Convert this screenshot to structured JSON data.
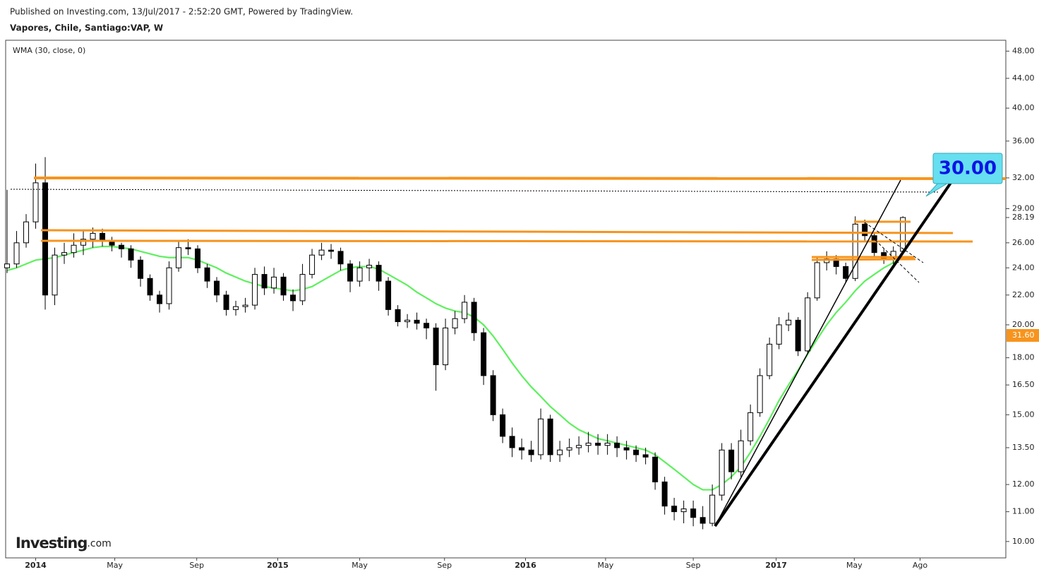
{
  "header": {
    "published": "Published on Investing.com, 13/Jul/2017 - 2:52:20 GMT, Powered by TradingView.",
    "symbol": "Vapores, Chile, Santiago:VAP, W"
  },
  "logo": {
    "name": "Investing",
    "suffix": ".com"
  },
  "badge_label": "31.60",
  "callout": "30.00",
  "chart_data": {
    "type": "candlestick",
    "indicator": "WMA (30, close, 0)",
    "log_scale": true,
    "up_color": "#ffffff",
    "down_color": "#000000",
    "wma_color": "#5ef05e",
    "xlim": [
      -0.15,
      104.8
    ],
    "ylim": [
      9.49,
      49.7
    ],
    "xticks": [
      {
        "value": 3,
        "label": "2014"
      },
      {
        "value": 11.3,
        "label": "May"
      },
      {
        "value": 19.9,
        "label": "Sep"
      },
      {
        "value": 28.4,
        "label": "2015"
      },
      {
        "value": 37,
        "label": "May"
      },
      {
        "value": 45.9,
        "label": "Sep"
      },
      {
        "value": 54.4,
        "label": "2016"
      },
      {
        "value": 62.8,
        "label": "May"
      },
      {
        "value": 72,
        "label": "Sep"
      },
      {
        "value": 80.7,
        "label": "2017"
      },
      {
        "value": 88.9,
        "label": "May"
      },
      {
        "value": 95.8,
        "label": "Ago"
      }
    ],
    "yticks": [
      {
        "value": 10,
        "label": "10.00"
      },
      {
        "value": 11,
        "label": "11.00"
      },
      {
        "value": 12,
        "label": "12.00"
      },
      {
        "value": 13.5,
        "label": "13.50"
      },
      {
        "value": 15,
        "label": "15.00"
      },
      {
        "value": 16.5,
        "label": "16.50"
      },
      {
        "value": 18,
        "label": "18.00"
      },
      {
        "value": 20,
        "label": "20.00"
      },
      {
        "value": 22,
        "label": "22.00"
      },
      {
        "value": 24,
        "label": "24.00"
      },
      {
        "value": 26,
        "label": "26.00"
      },
      {
        "value": 29,
        "label": "29.00"
      },
      {
        "value": 32,
        "label": "32.00"
      },
      {
        "value": 36,
        "label": "36.00"
      },
      {
        "value": 40,
        "label": "40.00"
      },
      {
        "value": 44,
        "label": "44.00"
      },
      {
        "value": 48,
        "label": "48.00"
      }
    ],
    "last_price": {
      "value": 28.19,
      "label": "28.19"
    },
    "open": [
      24.0,
      24.3,
      26.0,
      27.8,
      31.5,
      22.0,
      25.0,
      25.2,
      25.8,
      26.3,
      26.8,
      26.2,
      25.8,
      25.5,
      24.6,
      23.2,
      22.0,
      21.4,
      24.0,
      25.6,
      25.5,
      24.0,
      23.0,
      22.0,
      21.0,
      21.2,
      21.3,
      23.5,
      22.5,
      23.3,
      22.0,
      21.6,
      23.5,
      25.0,
      25.4,
      25.3,
      24.3,
      23.0,
      24.0,
      24.2,
      23.0,
      21.0,
      20.2,
      20.3,
      20.1,
      19.8,
      17.6,
      19.8,
      20.4,
      21.5,
      19.5,
      17.0,
      15.0,
      14.0,
      13.5,
      13.4,
      13.2,
      14.8,
      13.2,
      13.4,
      13.5,
      13.6,
      13.7,
      13.6,
      13.7,
      13.5,
      13.4,
      13.2,
      13.1,
      12.1,
      11.2,
      11.0,
      11.1,
      10.8,
      10.6,
      11.6,
      13.4,
      12.5,
      13.8,
      15.1,
      17.0,
      18.8,
      20.0,
      20.3,
      18.4,
      21.8,
      24.4,
      24.7,
      24.1,
      23.2,
      27.6,
      26.6,
      25.2,
      24.7,
      25.3
    ],
    "high": [
      30.8,
      27.0,
      28.5,
      33.5,
      34.2,
      25.6,
      26.0,
      26.8,
      27.0,
      27.3,
      27.2,
      26.5,
      26.0,
      25.8,
      24.9,
      23.5,
      22.3,
      24.5,
      26.2,
      26.3,
      25.8,
      24.3,
      23.3,
      22.3,
      21.6,
      21.8,
      24.0,
      24.1,
      24.0,
      23.6,
      22.4,
      24.3,
      25.5,
      26.0,
      25.9,
      25.6,
      24.6,
      24.5,
      24.7,
      24.5,
      23.3,
      21.3,
      20.7,
      20.8,
      20.4,
      20.1,
      20.4,
      20.9,
      22.0,
      21.8,
      19.8,
      17.3,
      15.3,
      14.4,
      13.9,
      13.8,
      15.3,
      15.0,
      13.8,
      13.9,
      14.0,
      14.2,
      14.1,
      14.1,
      14.0,
      13.8,
      13.6,
      13.5,
      13.3,
      12.3,
      11.5,
      11.4,
      11.4,
      11.2,
      12.0,
      13.7,
      13.7,
      14.3,
      15.5,
      17.4,
      19.2,
      20.5,
      20.8,
      20.5,
      22.2,
      24.8,
      25.3,
      25.0,
      24.4,
      28.3,
      28.0,
      26.9,
      25.5,
      25.7,
      28.3
    ],
    "low": [
      23.6,
      24.0,
      25.6,
      27.2,
      21.0,
      21.3,
      24.3,
      24.8,
      25.0,
      25.6,
      25.7,
      25.3,
      24.8,
      24.0,
      22.6,
      21.6,
      20.8,
      21.0,
      23.7,
      25.0,
      23.6,
      22.5,
      21.5,
      20.6,
      20.6,
      20.8,
      21.0,
      22.0,
      22.1,
      21.6,
      20.9,
      21.3,
      23.2,
      24.6,
      24.7,
      23.8,
      22.2,
      22.6,
      23.0,
      22.3,
      20.6,
      19.9,
      19.8,
      19.7,
      19.1,
      16.2,
      17.3,
      19.4,
      20.1,
      19.0,
      16.5,
      14.7,
      13.7,
      13.1,
      13.0,
      12.9,
      13.0,
      12.9,
      12.9,
      13.1,
      13.2,
      13.3,
      13.2,
      13.2,
      13.1,
      13.0,
      12.9,
      12.8,
      11.8,
      10.9,
      10.7,
      10.6,
      10.5,
      10.4,
      10.5,
      11.4,
      12.2,
      12.3,
      13.6,
      14.9,
      16.8,
      18.5,
      19.6,
      18.1,
      18.2,
      21.6,
      23.8,
      23.5,
      22.9,
      23.0,
      26.2,
      24.8,
      24.3,
      24.3,
      25.1
    ],
    "close": [
      24.3,
      26.0,
      27.8,
      31.5,
      22.0,
      25.0,
      25.2,
      25.8,
      26.3,
      26.8,
      26.2,
      25.8,
      25.5,
      24.6,
      23.2,
      22.0,
      21.4,
      24.0,
      25.6,
      25.5,
      24.0,
      23.0,
      22.0,
      21.0,
      21.2,
      21.3,
      23.5,
      22.5,
      23.3,
      22.0,
      21.6,
      23.5,
      25.0,
      25.4,
      25.3,
      24.3,
      23.0,
      24.0,
      24.2,
      23.0,
      21.0,
      20.2,
      20.3,
      20.1,
      19.8,
      17.6,
      19.8,
      20.4,
      21.5,
      19.5,
      17.0,
      15.0,
      14.0,
      13.5,
      13.4,
      13.2,
      14.8,
      13.2,
      13.4,
      13.5,
      13.6,
      13.7,
      13.6,
      13.7,
      13.5,
      13.4,
      13.2,
      13.1,
      12.1,
      11.2,
      11.0,
      11.1,
      10.8,
      10.6,
      11.6,
      13.4,
      12.5,
      13.8,
      15.1,
      17.0,
      18.8,
      20.0,
      20.3,
      18.4,
      21.8,
      24.4,
      24.7,
      24.1,
      23.2,
      27.6,
      26.6,
      25.2,
      24.7,
      25.3,
      28.19
    ],
    "wma": [
      23.8,
      24.0,
      24.3,
      24.6,
      24.7,
      24.8,
      25.0,
      25.2,
      25.4,
      25.6,
      25.7,
      25.7,
      25.6,
      25.5,
      25.3,
      25.1,
      24.9,
      24.8,
      24.8,
      24.8,
      24.6,
      24.3,
      24.0,
      23.6,
      23.3,
      23.0,
      22.8,
      22.6,
      22.5,
      22.4,
      22.3,
      22.4,
      22.6,
      23.0,
      23.4,
      23.8,
      24.0,
      24.1,
      24.1,
      23.9,
      23.5,
      23.1,
      22.7,
      22.2,
      21.8,
      21.4,
      21.1,
      20.9,
      20.8,
      20.5,
      20.0,
      19.3,
      18.5,
      17.7,
      17.0,
      16.4,
      15.9,
      15.4,
      15.0,
      14.6,
      14.3,
      14.1,
      13.9,
      13.8,
      13.7,
      13.6,
      13.5,
      13.4,
      13.2,
      12.9,
      12.6,
      12.3,
      12.0,
      11.8,
      11.8,
      12.0,
      12.3,
      12.7,
      13.3,
      14.0,
      14.8,
      15.7,
      16.5,
      17.3,
      18.2,
      19.1,
      20.0,
      20.8,
      21.5,
      22.3,
      23.0,
      23.5,
      24.0,
      24.4,
      24.8
    ]
  }
}
